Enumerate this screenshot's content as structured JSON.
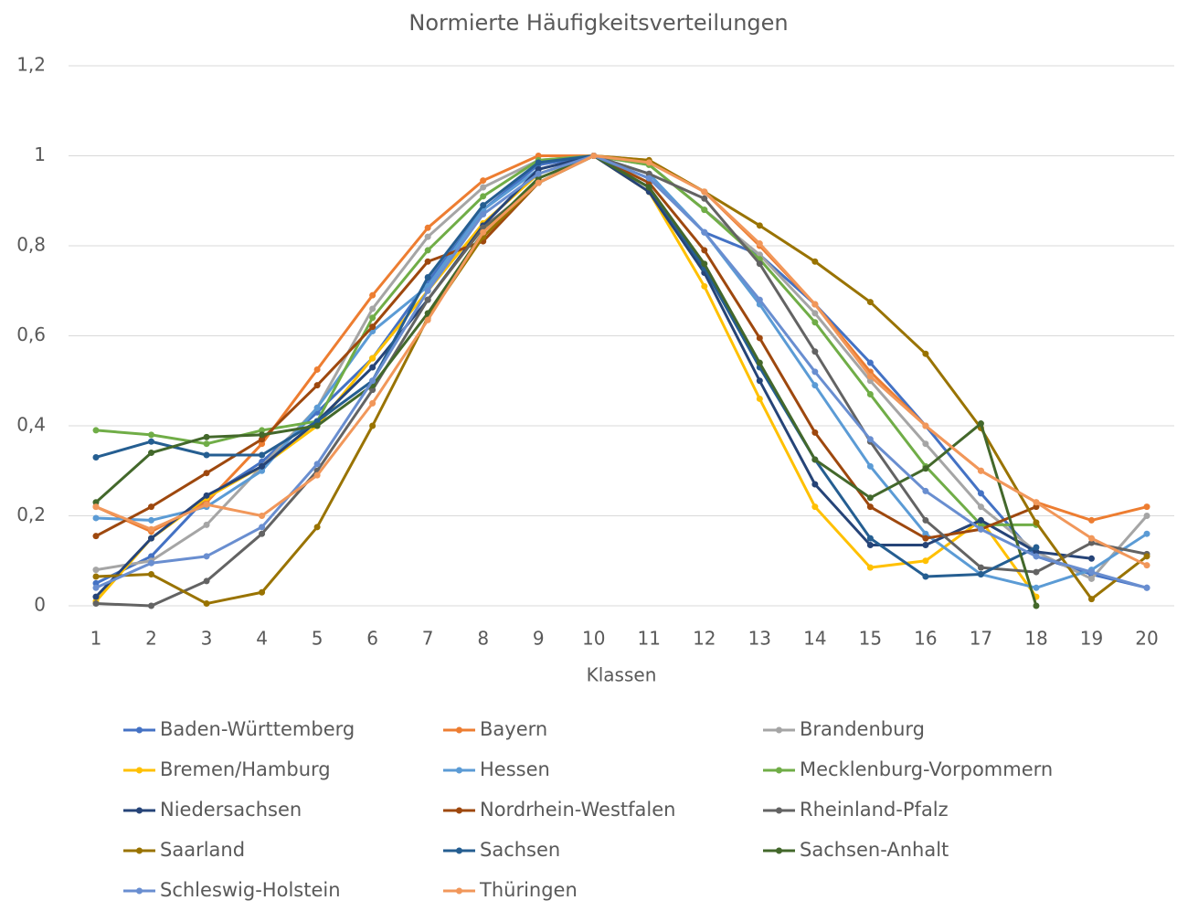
{
  "chart_data": {
    "type": "line",
    "title": "Normierte Häufigkeitsverteilungen",
    "x_label": "Klassen",
    "categories": [
      "1",
      "2",
      "3",
      "4",
      "5",
      "6",
      "7",
      "8",
      "9",
      "10",
      "11",
      "12",
      "13",
      "14",
      "15",
      "16",
      "17",
      "18",
      "19",
      "20"
    ],
    "ylim": [
      0,
      1.2
    ],
    "yticks": [
      0,
      {
        "value": 0.2,
        "label": "0,2"
      },
      {
        "value": 0.4,
        "label": "0,4"
      },
      {
        "value": 0.6,
        "label": "0,6"
      },
      {
        "value": 0.8,
        "label": "0,8"
      },
      1,
      {
        "value": 1.2,
        "label": "1,2"
      }
    ],
    "grid": true,
    "legend": "bottom",
    "series": [
      {
        "name": "Baden-Württemberg",
        "color": "#4472C4",
        "values": [
          0.05,
          0.11,
          0.24,
          0.32,
          0.43,
          0.55,
          0.72,
          0.88,
          0.98,
          1,
          0.95,
          0.83,
          0.78,
          0.67,
          0.54,
          0.4,
          0.25,
          0.11,
          0.07,
          0.04
        ]
      },
      {
        "name": "Bayern",
        "color": "#ED7D31",
        "values": [
          0.22,
          0.165,
          0.23,
          0.36,
          0.525,
          0.69,
          0.84,
          0.945,
          1,
          1,
          0.99,
          0.92,
          0.8,
          0.67,
          0.52,
          0.4,
          0.3,
          0.23,
          0.19,
          0.22
        ]
      },
      {
        "name": "Brandenburg",
        "color": "#A5A5A5",
        "values": [
          0.08,
          0.1,
          0.18,
          0.31,
          0.44,
          0.66,
          0.82,
          0.93,
          0.99,
          1,
          0.98,
          0.88,
          0.78,
          0.65,
          0.5,
          0.36,
          0.22,
          0.12,
          0.06,
          0.2
        ]
      },
      {
        "name": "Bremen/Hamburg",
        "color": "#FFC000",
        "values": [
          0.01,
          0.15,
          0.24,
          0.31,
          0.4,
          0.55,
          0.7,
          0.85,
          0.96,
          1,
          0.92,
          0.71,
          0.46,
          0.22,
          0.085,
          0.1,
          0.19,
          0.02,
          null,
          null
        ]
      },
      {
        "name": "Hessen",
        "color": "#5B9BD5",
        "values": [
          0.195,
          0.19,
          0.22,
          0.3,
          0.44,
          0.61,
          0.71,
          0.88,
          0.97,
          1,
          0.96,
          0.83,
          0.67,
          0.49,
          0.31,
          0.16,
          0.07,
          0.04,
          0.08,
          0.16
        ]
      },
      {
        "name": "Mecklenburg-Vorpommern",
        "color": "#70AD47",
        "values": [
          0.39,
          0.38,
          0.36,
          0.39,
          0.41,
          0.64,
          0.79,
          0.91,
          0.99,
          1,
          0.98,
          0.88,
          0.77,
          0.63,
          0.47,
          0.31,
          0.18,
          0.18,
          null,
          null
        ]
      },
      {
        "name": "Niedersachsen",
        "color": "#264478",
        "values": [
          0.02,
          0.15,
          0.245,
          0.31,
          0.41,
          0.53,
          0.68,
          0.845,
          0.97,
          1,
          0.92,
          0.74,
          0.5,
          0.27,
          0.135,
          0.135,
          0.19,
          0.12,
          0.105,
          null
        ]
      },
      {
        "name": "Nordrhein-Westfalen",
        "color": "#9E480E",
        "values": [
          0.155,
          0.22,
          0.295,
          0.37,
          0.49,
          0.62,
          0.765,
          0.81,
          0.94,
          1,
          0.94,
          0.79,
          0.595,
          0.385,
          0.22,
          0.15,
          0.17,
          0.22,
          null,
          null
        ]
      },
      {
        "name": "Rheinland-Pfalz",
        "color": "#636363",
        "values": [
          0.005,
          0.0,
          0.055,
          0.16,
          0.3,
          0.48,
          0.68,
          0.84,
          0.94,
          1,
          0.96,
          0.905,
          0.76,
          0.565,
          0.365,
          0.19,
          0.085,
          0.075,
          0.14,
          0.115
        ]
      },
      {
        "name": "Saarland",
        "color": "#997300",
        "values": [
          0.065,
          0.07,
          0.005,
          0.03,
          0.175,
          0.4,
          0.64,
          0.82,
          0.94,
          1,
          0.99,
          0.92,
          0.845,
          0.765,
          0.675,
          0.56,
          0.395,
          0.185,
          0.015,
          0.11
        ]
      },
      {
        "name": "Sachsen",
        "color": "#255E91",
        "values": [
          0.33,
          0.365,
          0.335,
          0.335,
          0.41,
          0.5,
          0.73,
          0.89,
          0.985,
          1,
          0.93,
          0.75,
          0.53,
          0.325,
          0.15,
          0.065,
          0.07,
          0.13,
          null,
          null
        ]
      },
      {
        "name": "Sachsen-Anhalt",
        "color": "#43682B",
        "values": [
          0.23,
          0.34,
          0.375,
          0.38,
          0.4,
          0.49,
          0.65,
          0.83,
          0.95,
          1,
          0.93,
          0.76,
          0.54,
          0.325,
          0.24,
          0.305,
          0.405,
          0.0,
          null,
          null
        ]
      },
      {
        "name": "Schleswig-Holstein",
        "color": "#698ED0",
        "values": [
          0.04,
          0.095,
          0.11,
          0.175,
          0.315,
          0.5,
          0.7,
          0.87,
          0.96,
          1,
          0.95,
          0.83,
          0.68,
          0.52,
          0.37,
          0.255,
          0.17,
          0.11,
          0.075,
          0.04
        ]
      },
      {
        "name": "Thüringen",
        "color": "#F1975A",
        "values": [
          0.22,
          0.17,
          0.225,
          0.2,
          0.29,
          0.45,
          0.635,
          0.83,
          0.94,
          1,
          0.985,
          0.92,
          0.805,
          0.67,
          0.51,
          0.4,
          0.3,
          0.23,
          0.15,
          0.09
        ]
      }
    ]
  }
}
